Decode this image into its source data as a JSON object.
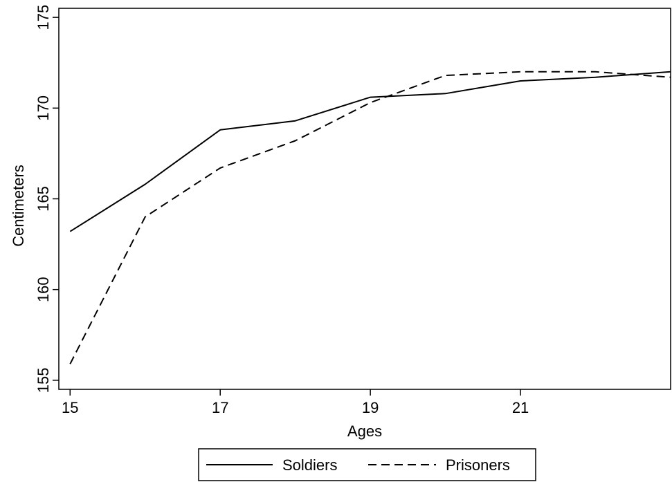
{
  "chart_data": {
    "type": "line",
    "xlabel": "Ages",
    "ylabel": "Centimeters",
    "xlim": [
      14.85,
      23.0
    ],
    "ylim": [
      154.5,
      175.5
    ],
    "xticks": [
      15,
      17,
      19,
      21
    ],
    "yticks": [
      155,
      160,
      165,
      170,
      175
    ],
    "grid": false,
    "legend_position": "bottom",
    "series": [
      {
        "name": "Soldiers",
        "style": "solid",
        "color": "#000000",
        "x": [
          15,
          16,
          17,
          18,
          19,
          20,
          21,
          22,
          23
        ],
        "y": [
          163.2,
          165.8,
          168.8,
          169.3,
          170.6,
          170.8,
          171.5,
          171.7,
          172.0
        ]
      },
      {
        "name": "Prisoners",
        "style": "dashed",
        "color": "#000000",
        "x": [
          15,
          16,
          17,
          18,
          19,
          20,
          21,
          22,
          23
        ],
        "y": [
          155.9,
          164.0,
          166.7,
          168.2,
          170.3,
          171.8,
          172.0,
          172.0,
          171.7
        ]
      }
    ]
  }
}
